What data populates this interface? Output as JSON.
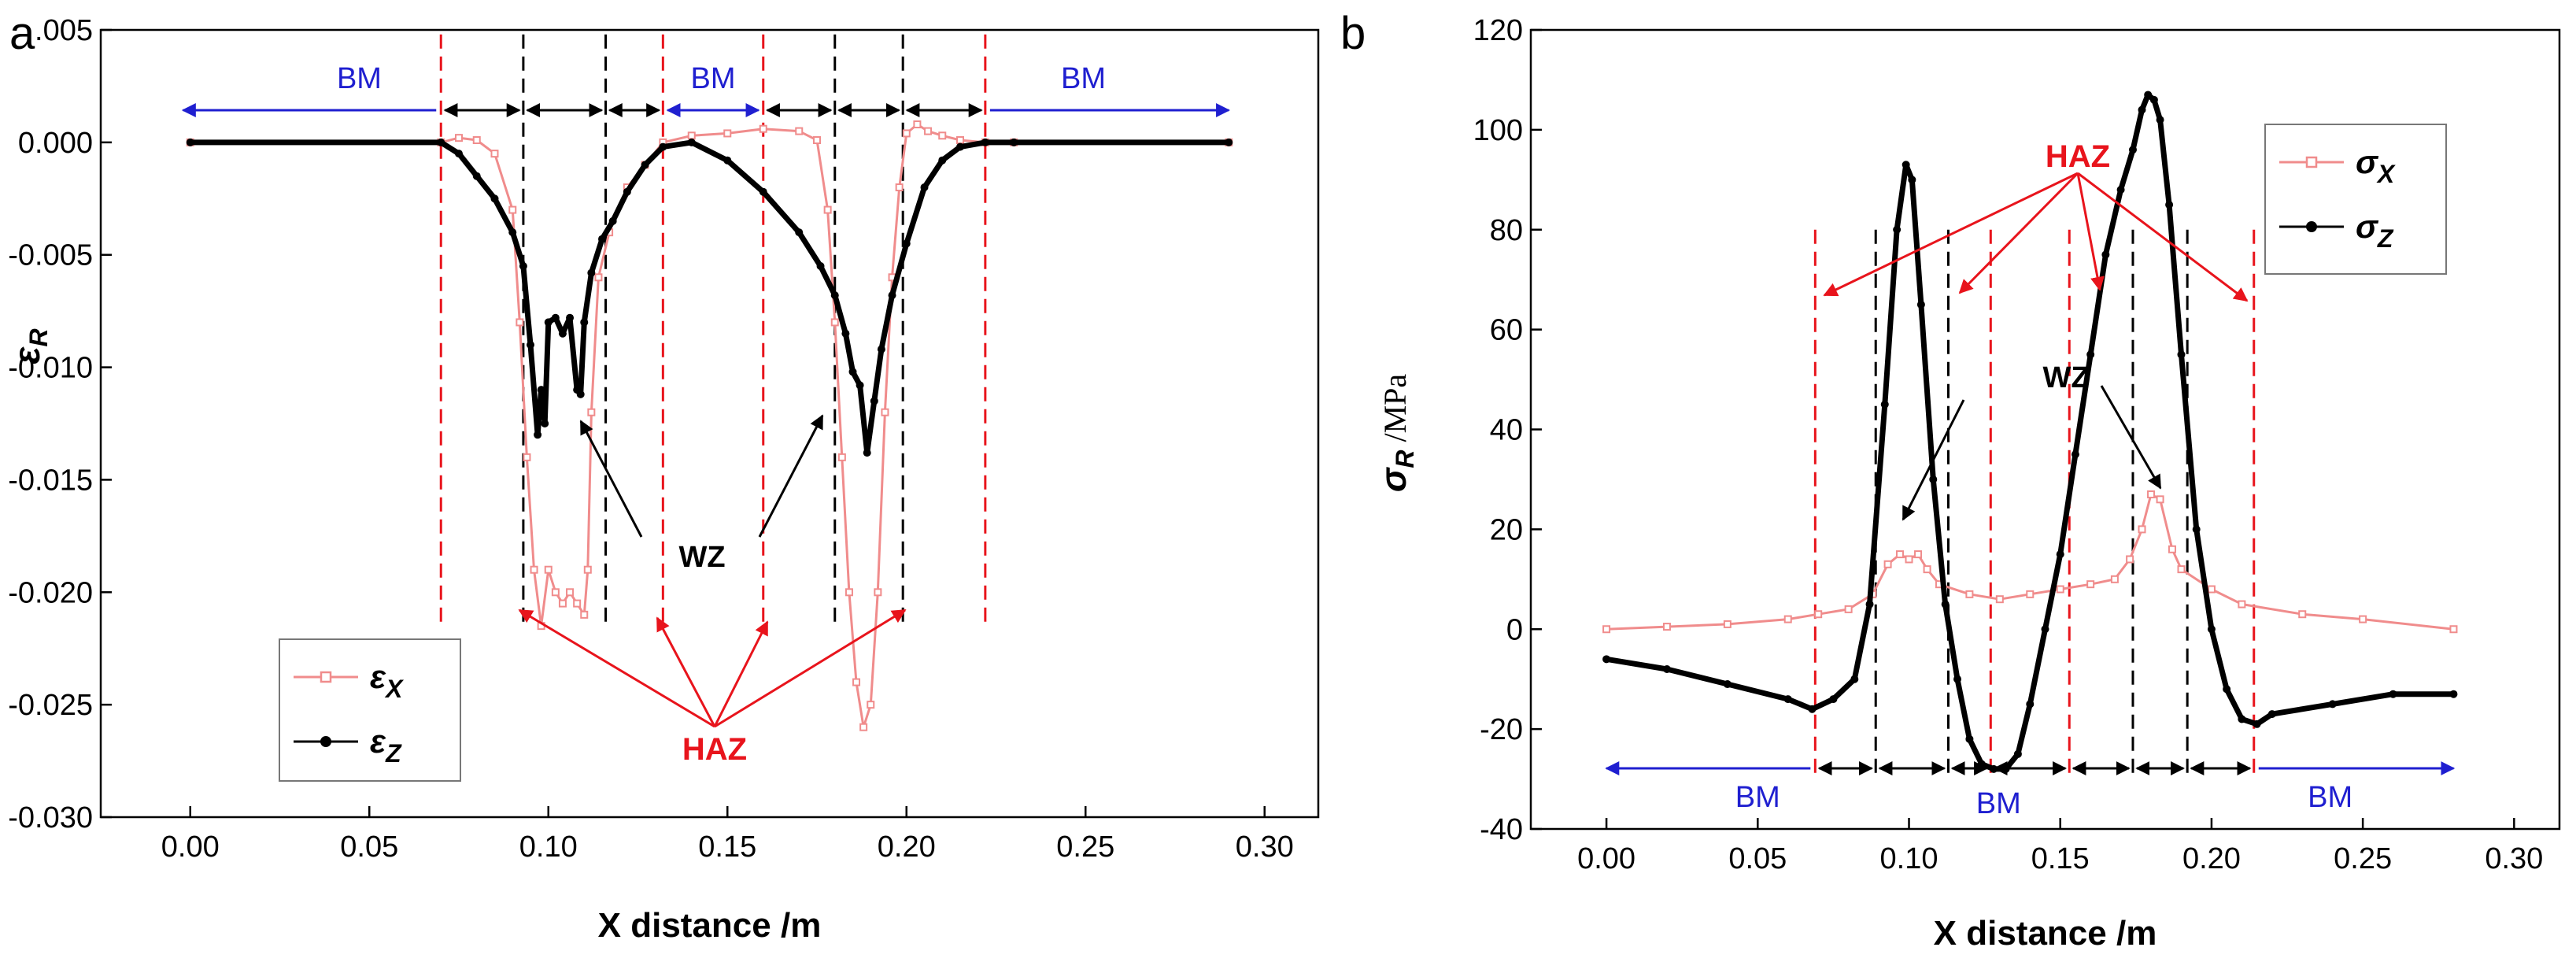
{
  "colors": {
    "blue": "#1f1fd0",
    "red": "#e8141c",
    "pink": "#f08c8c",
    "black": "#000000"
  },
  "chart_data": [
    {
      "panel": "a",
      "type": "line",
      "xlabel": "X distance /m",
      "ylabel": "ε",
      "ylabel_sub": "R",
      "ylabel_unit": "",
      "xlim": [
        -0.025,
        0.315
      ],
      "ylim": [
        -0.03,
        0.005
      ],
      "x_ticks": [
        0.0,
        0.05,
        0.1,
        0.15,
        0.2,
        0.25,
        0.3
      ],
      "x_tick_labels": [
        "0.00",
        "0.05",
        "0.10",
        "0.15",
        "0.20",
        "0.25",
        "0.30"
      ],
      "y_ticks": [
        0.005,
        0.0,
        -0.005,
        -0.01,
        -0.015,
        -0.02,
        -0.025,
        -0.03
      ],
      "y_tick_labels": [
        ".005",
        "0.000",
        "-0.005",
        "-0.010",
        "-0.015",
        "-0.020",
        "-0.025",
        "-0.030"
      ],
      "legend": {
        "placement": "bottom-left",
        "entries": [
          {
            "symbol": "ε",
            "sub": "X"
          },
          {
            "symbol": "ε",
            "sub": "Z"
          }
        ]
      },
      "series": [
        {
          "name": "εX",
          "x": [
            0.0,
            0.07,
            0.075,
            0.08,
            0.085,
            0.09,
            0.092,
            0.094,
            0.096,
            0.098,
            0.1,
            0.102,
            0.104,
            0.106,
            0.108,
            0.11,
            0.111,
            0.112,
            0.114,
            0.117,
            0.122,
            0.127,
            0.132,
            0.14,
            0.15,
            0.16,
            0.17,
            0.175,
            0.178,
            0.18,
            0.182,
            0.184,
            0.186,
            0.188,
            0.19,
            0.192,
            0.194,
            0.196,
            0.198,
            0.2,
            0.203,
            0.206,
            0.21,
            0.215,
            0.222,
            0.23,
            0.29
          ],
          "y": [
            0.0,
            0.0,
            0.0002,
            0.0001,
            -0.0005,
            -0.003,
            -0.008,
            -0.014,
            -0.019,
            -0.0215,
            -0.019,
            -0.02,
            -0.0205,
            -0.02,
            -0.0205,
            -0.021,
            -0.019,
            -0.012,
            -0.006,
            -0.004,
            -0.002,
            -0.001,
            0.0,
            0.0003,
            0.0004,
            0.0006,
            0.0005,
            0.0001,
            -0.003,
            -0.008,
            -0.014,
            -0.02,
            -0.024,
            -0.026,
            -0.025,
            -0.02,
            -0.012,
            -0.006,
            -0.002,
            0.0004,
            0.0008,
            0.0005,
            0.0003,
            0.0001,
            0.0,
            0.0,
            0.0
          ]
        },
        {
          "name": "εZ",
          "x": [
            0.0,
            0.07,
            0.075,
            0.08,
            0.085,
            0.09,
            0.093,
            0.095,
            0.097,
            0.098,
            0.099,
            0.1,
            0.102,
            0.104,
            0.106,
            0.108,
            0.109,
            0.11,
            0.112,
            0.115,
            0.118,
            0.122,
            0.127,
            0.132,
            0.14,
            0.15,
            0.16,
            0.17,
            0.176,
            0.18,
            0.183,
            0.185,
            0.187,
            0.189,
            0.191,
            0.193,
            0.196,
            0.2,
            0.205,
            0.21,
            0.215,
            0.222,
            0.23,
            0.29
          ],
          "y": [
            0.0,
            0.0,
            -0.0005,
            -0.0015,
            -0.0025,
            -0.004,
            -0.0055,
            -0.009,
            -0.013,
            -0.011,
            -0.0125,
            -0.008,
            -0.0078,
            -0.0085,
            -0.0078,
            -0.011,
            -0.0112,
            -0.008,
            -0.0058,
            -0.0043,
            -0.0035,
            -0.0022,
            -0.001,
            -0.0002,
            0.0,
            -0.0008,
            -0.0022,
            -0.004,
            -0.0055,
            -0.0068,
            -0.0085,
            -0.0102,
            -0.0108,
            -0.0138,
            -0.0115,
            -0.0092,
            -0.0068,
            -0.0045,
            -0.002,
            -0.0008,
            -0.0002,
            0.0,
            0.0,
            0.0
          ]
        }
      ],
      "zone_lines_red": [
        0.07,
        0.132,
        0.16,
        0.222
      ],
      "zone_lines_black": [
        0.093,
        0.116,
        0.18,
        0.199
      ],
      "zone_labels": {
        "bm": [
          "BM",
          "BM",
          "BM"
        ],
        "haz": "HAZ",
        "wz": "WZ"
      }
    },
    {
      "panel": "b",
      "type": "line",
      "xlabel": "X distance /m",
      "ylabel": "σ",
      "ylabel_sub": "R",
      "ylabel_unit": "/MPa",
      "xlim": [
        -0.025,
        0.315
      ],
      "ylim": [
        -40,
        120
      ],
      "x_ticks": [
        0.0,
        0.05,
        0.1,
        0.15,
        0.2,
        0.25,
        0.3
      ],
      "x_tick_labels": [
        "0.00",
        "0.05",
        "0.10",
        "0.15",
        "0.20",
        "0.25",
        "0.30"
      ],
      "y_ticks": [
        120,
        100,
        80,
        60,
        40,
        20,
        0,
        -20,
        -40
      ],
      "y_tick_labels": [
        "120",
        "100",
        "80",
        "60",
        "40",
        "20",
        "0",
        "-20",
        "-40"
      ],
      "legend": {
        "placement": "top-right",
        "entries": [
          {
            "symbol": "σ",
            "sub": "X"
          },
          {
            "symbol": "σ",
            "sub": "Z"
          }
        ]
      },
      "series": [
        {
          "name": "σX",
          "x": [
            0.0,
            0.02,
            0.04,
            0.06,
            0.07,
            0.08,
            0.088,
            0.093,
            0.097,
            0.1,
            0.103,
            0.106,
            0.11,
            0.12,
            0.13,
            0.14,
            0.15,
            0.16,
            0.168,
            0.173,
            0.177,
            0.18,
            0.183,
            0.187,
            0.19,
            0.2,
            0.21,
            0.23,
            0.25,
            0.28
          ],
          "y": [
            0,
            0.5,
            1,
            2,
            3,
            4,
            7,
            13,
            15,
            14,
            15,
            12,
            9,
            7,
            6,
            7,
            8,
            9,
            10,
            14,
            20,
            27,
            26,
            16,
            12,
            8,
            5,
            3,
            2,
            0
          ]
        },
        {
          "name": "σZ",
          "x": [
            0.0,
            0.02,
            0.04,
            0.06,
            0.068,
            0.075,
            0.082,
            0.087,
            0.092,
            0.096,
            0.099,
            0.101,
            0.104,
            0.108,
            0.112,
            0.116,
            0.12,
            0.124,
            0.128,
            0.132,
            0.136,
            0.14,
            0.145,
            0.15,
            0.155,
            0.16,
            0.165,
            0.17,
            0.174,
            0.177,
            0.179,
            0.181,
            0.183,
            0.186,
            0.19,
            0.195,
            0.2,
            0.205,
            0.21,
            0.215,
            0.22,
            0.24,
            0.26,
            0.28
          ],
          "y": [
            -6,
            -8,
            -11,
            -14,
            -16,
            -14,
            -10,
            5,
            45,
            80,
            93,
            90,
            65,
            30,
            5,
            -10,
            -22,
            -27,
            -28,
            -28,
            -25,
            -15,
            0,
            15,
            35,
            55,
            75,
            88,
            96,
            104,
            107,
            106,
            102,
            85,
            55,
            20,
            0,
            -12,
            -18,
            -19,
            -17,
            -15,
            -13,
            -13
          ]
        }
      ],
      "zone_lines_red": [
        0.069,
        0.127,
        0.153,
        0.214
      ],
      "zone_lines_black": [
        0.089,
        0.113,
        0.174,
        0.192
      ],
      "zone_labels": {
        "bm": [
          "BM",
          "BM",
          "BM"
        ],
        "haz": "HAZ",
        "wz": "WZ"
      }
    }
  ]
}
